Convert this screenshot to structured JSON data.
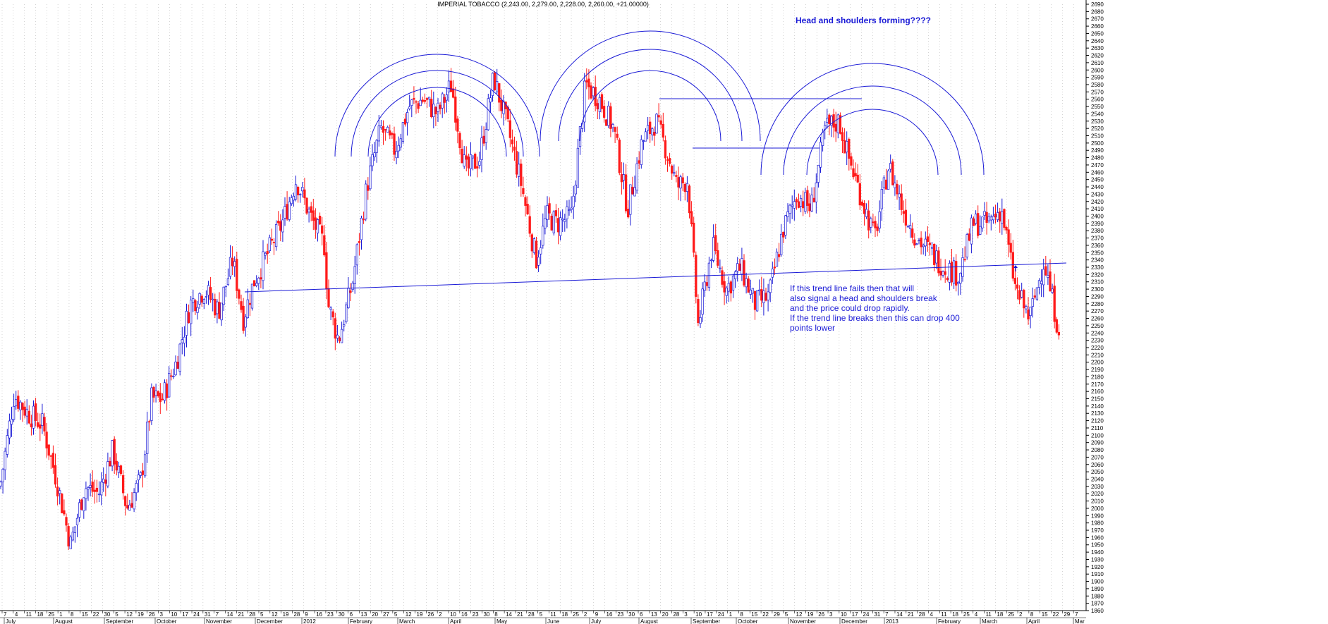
{
  "chart_data": {
    "type": "candlestick",
    "title": "IMPERIAL TOBACCO (2,243.00, 2,279.00, 2,228.00, 2,260.00, +21.00000)",
    "ylim": [
      1860,
      2690
    ],
    "y_ticks": [
      2690,
      2680,
      2670,
      2660,
      2650,
      2640,
      2630,
      2620,
      2610,
      2600,
      2590,
      2580,
      2570,
      2560,
      2550,
      2540,
      2530,
      2520,
      2510,
      2500,
      2490,
      2480,
      2470,
      2460,
      2450,
      2440,
      2430,
      2420,
      2410,
      2400,
      2390,
      2380,
      2370,
      2360,
      2350,
      2340,
      2330,
      2320,
      2310,
      2300,
      2290,
      2280,
      2270,
      2260,
      2250,
      2240,
      2230,
      2220,
      2210,
      2200,
      2190,
      2180,
      2170,
      2160,
      2150,
      2140,
      2130,
      2120,
      2110,
      2100,
      2090,
      2080,
      2070,
      2060,
      2050,
      2040,
      2030,
      2020,
      2010,
      2000,
      1990,
      1980,
      1970,
      1960,
      1950,
      1940,
      1930,
      1920,
      1910,
      1900,
      1890,
      1880,
      1870,
      1860
    ],
    "grid": "vertical dotted",
    "x_day_labels": [
      "7",
      "4",
      "11",
      "18",
      "25",
      "1",
      "8",
      "15",
      "22",
      "30",
      "5",
      "12",
      "19",
      "26",
      "3",
      "10",
      "17",
      "24",
      "31",
      "7",
      "14",
      "21",
      "28",
      "5",
      "12",
      "19",
      "28",
      "9",
      "16",
      "23",
      "30",
      "6",
      "13",
      "20",
      "27",
      "5",
      "12",
      "19",
      "26",
      "2",
      "10",
      "16",
      "23",
      "30",
      "8",
      "14",
      "21",
      "28",
      "5",
      "11",
      "18",
      "25",
      "2",
      "9",
      "16",
      "23",
      "30",
      "6",
      "13",
      "20",
      "28",
      "3",
      "10",
      "17",
      "24",
      "1",
      "8",
      "15",
      "22",
      "29",
      "5",
      "12",
      "19",
      "26",
      "3",
      "10",
      "17",
      "24",
      "31",
      "7",
      "14",
      "21",
      "28",
      "4",
      "11",
      "18",
      "25",
      "4",
      "11",
      "18",
      "25",
      "2",
      "8",
      "15",
      "22",
      "29",
      "7"
    ],
    "x_month_labels": [
      "July",
      "August",
      "September",
      "October",
      "November",
      "December",
      "2012",
      "February",
      "March",
      "April",
      "May",
      "June",
      "July",
      "August",
      "September",
      "October",
      "November",
      "December",
      "2013",
      "February",
      "March",
      "April",
      "Mar"
    ],
    "series": [
      {
        "values": [
          [
            0,
            2030
          ],
          [
            20,
            2155
          ],
          [
            40,
            2130
          ],
          [
            60,
            2115
          ],
          [
            80,
            2040
          ],
          [
            100,
            1950
          ],
          [
            120,
            2030
          ],
          [
            140,
            2020
          ],
          [
            160,
            2080
          ],
          [
            180,
            2000
          ],
          [
            200,
            2040
          ],
          [
            215,
            2150
          ],
          [
            230,
            2150
          ],
          [
            250,
            2200
          ],
          [
            270,
            2280
          ],
          [
            290,
            2300
          ],
          [
            310,
            2270
          ],
          [
            330,
            2340
          ],
          [
            345,
            2260
          ],
          [
            360,
            2310
          ],
          [
            380,
            2350
          ],
          [
            400,
            2390
          ],
          [
            420,
            2450
          ],
          [
            440,
            2400
          ],
          [
            460,
            2360
          ],
          [
            465,
            2280
          ],
          [
            480,
            2230
          ],
          [
            500,
            2310
          ],
          [
            520,
            2440
          ],
          [
            540,
            2520
          ],
          [
            560,
            2490
          ],
          [
            580,
            2550
          ],
          [
            600,
            2560
          ],
          [
            620,
            2540
          ],
          [
            640,
            2580
          ],
          [
            660,
            2460
          ],
          [
            680,
            2480
          ],
          [
            700,
            2590
          ],
          [
            720,
            2520
          ],
          [
            740,
            2440
          ],
          [
            760,
            2340
          ],
          [
            775,
            2400
          ],
          [
            790,
            2390
          ],
          [
            810,
            2400
          ],
          [
            830,
            2580
          ],
          [
            850,
            2560
          ],
          [
            870,
            2520
          ],
          [
            890,
            2410
          ],
          [
            910,
            2500
          ],
          [
            930,
            2530
          ],
          [
            945,
            2490
          ],
          [
            960,
            2440
          ],
          [
            975,
            2450
          ],
          [
            990,
            2250
          ],
          [
            1010,
            2360
          ],
          [
            1030,
            2300
          ],
          [
            1050,
            2330
          ],
          [
            1070,
            2280
          ],
          [
            1090,
            2290
          ],
          [
            1110,
            2380
          ],
          [
            1130,
            2430
          ],
          [
            1150,
            2410
          ],
          [
            1170,
            2520
          ],
          [
            1190,
            2530
          ],
          [
            1200,
            2490
          ],
          [
            1220,
            2430
          ],
          [
            1240,
            2370
          ],
          [
            1260,
            2470
          ],
          [
            1280,
            2410
          ],
          [
            1300,
            2370
          ],
          [
            1320,
            2350
          ],
          [
            1340,
            2330
          ],
          [
            1360,
            2320
          ],
          [
            1380,
            2390
          ],
          [
            1400,
            2390
          ],
          [
            1420,
            2410
          ],
          [
            1440,
            2300
          ],
          [
            1460,
            2260
          ],
          [
            1480,
            2340
          ],
          [
            1500,
            2250
          ]
        ]
      }
    ],
    "annotations": {
      "headline": "Head and shoulders forming????",
      "note": "If this trend line fails then that will\nalso signal a head and shoulders break\nand the price could drop rapidly.\nIf the trend line breaks then this can drop 400\npoints lower"
    },
    "colors": {
      "up": "#1a1ad6",
      "down": "#ff1a1a",
      "annotation": "#1a1ad6"
    }
  }
}
